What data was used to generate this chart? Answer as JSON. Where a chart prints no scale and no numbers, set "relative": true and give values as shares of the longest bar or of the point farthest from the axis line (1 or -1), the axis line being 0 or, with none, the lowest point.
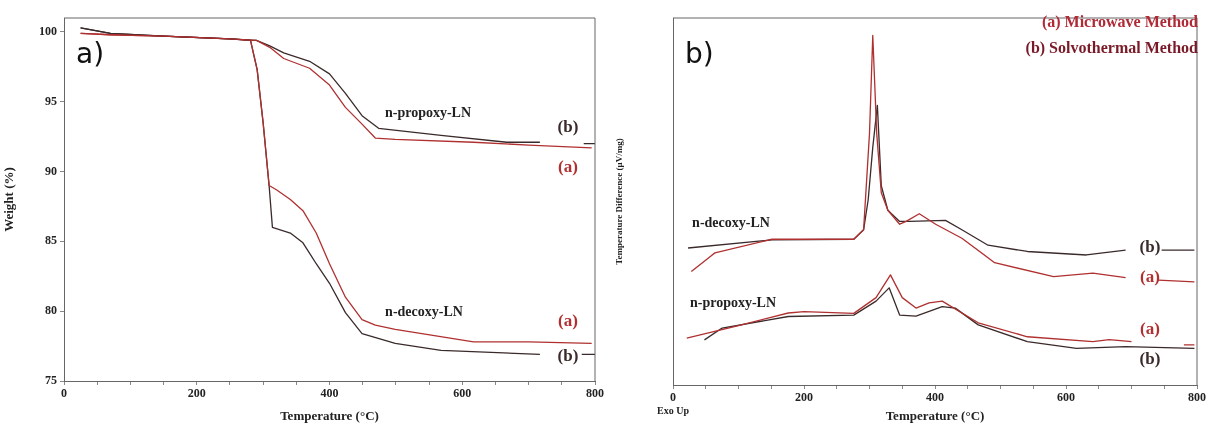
{
  "chart_data": [
    {
      "type": "line",
      "title": "a)",
      "xlabel": "Temperature (°C)",
      "ylabel": "Weight (%)",
      "xlim": [
        0,
        800
      ],
      "ylim": [
        75,
        101
      ],
      "xticks": [
        0,
        {
          "value": 50,
          "label": null
        },
        {
          "value": 100,
          "label": null
        },
        {
          "value": 150,
          "label": null
        },
        200,
        {
          "value": 250,
          "label": null
        },
        {
          "value": 300,
          "label": null
        },
        {
          "value": 350,
          "label": null
        },
        400,
        {
          "value": 450,
          "label": null
        },
        {
          "value": 500,
          "label": null
        },
        {
          "value": 550,
          "label": null
        },
        600,
        {
          "value": 650,
          "label": null
        },
        {
          "value": 700,
          "label": null
        },
        {
          "value": 750,
          "label": null
        },
        800
      ],
      "yticks": [
        75,
        80,
        85,
        90,
        95,
        100
      ],
      "grid": false,
      "legend": false,
      "marker": "none",
      "line_style": "solid",
      "series": [
        {
          "name": "(a)",
          "color": "#b03030",
          "x": [
            25,
            70,
            150,
            250,
            290,
            310,
            331,
            370,
            400,
            424,
            449,
            469,
            499,
            617,
            700,
            795
          ],
          "values": [
            99.9,
            99.8,
            99.7,
            99.5,
            99.4,
            98.9,
            98.1,
            97.4,
            96.2,
            94.6,
            93.4,
            92.4,
            92.3,
            92.1,
            91.9,
            91.7
          ]
        },
        {
          "name": "(b)",
          "color": "#3b2a2a",
          "x": [
            25,
            70,
            150,
            250,
            290,
            310,
            331,
            370,
            400,
            424,
            449,
            474,
            568,
            667,
            717,
            730,
            783,
            800
          ],
          "values": [
            100.3,
            99.9,
            99.7,
            99.5,
            99.4,
            99.0,
            98.5,
            97.9,
            97.0,
            95.6,
            94.0,
            93.1,
            92.6,
            92.1,
            92.1,
            null,
            92.0,
            92.0
          ]
        },
        {
          "name": "(a)",
          "color": "#b03030",
          "x": [
            25,
            70,
            150,
            250,
            281,
            291,
            300,
            309,
            320,
            341,
            360,
            380,
            400,
            424,
            449,
            469,
            499,
            617,
            700,
            795
          ],
          "values": [
            99.9,
            99.8,
            99.7,
            99.5,
            99.4,
            97.3,
            93.5,
            89.0,
            88.7,
            88.0,
            87.2,
            85.6,
            83.4,
            81.0,
            79.4,
            79.0,
            78.7,
            77.8,
            77.8,
            77.7
          ]
        },
        {
          "name": "(b)",
          "color": "#3b2a2a",
          "x": [
            25,
            70,
            150,
            250,
            281,
            291,
            300,
            309,
            314,
            341,
            360,
            380,
            400,
            424,
            449,
            499,
            568,
            717,
            730,
            780,
            800
          ],
          "values": [
            100.3,
            99.9,
            99.7,
            99.5,
            99.4,
            97.3,
            93.5,
            89.0,
            86.0,
            85.6,
            84.9,
            83.4,
            82.0,
            79.9,
            78.4,
            77.7,
            77.2,
            76.9,
            null,
            76.9,
            76.9
          ]
        }
      ],
      "annotations": [
        "n-propoxy-LN",
        "n-decoxy-LN"
      ]
    },
    {
      "type": "line",
      "title": "b)",
      "xlabel": "Temperature (°C)",
      "ylabel": "Temperature Difference (µV/mg)",
      "relative": true,
      "xlim": [
        0,
        800
      ],
      "xticks": [
        0,
        {
          "value": 50,
          "label": null
        },
        {
          "value": 100,
          "label": null
        },
        {
          "value": 150,
          "label": null
        },
        200,
        {
          "value": 250,
          "label": null
        },
        {
          "value": 300,
          "label": null
        },
        {
          "value": 350,
          "label": null
        },
        400,
        {
          "value": 450,
          "label": null
        },
        {
          "value": 500,
          "label": null
        },
        {
          "value": 550,
          "label": null
        },
        600,
        {
          "value": 650,
          "label": null
        },
        {
          "value": 700,
          "label": null
        },
        {
          "value": 750,
          "label": null
        },
        800
      ],
      "grid": false,
      "legend": false,
      "marker": "none",
      "line_style": "solid",
      "series": [
        {
          "name": "(a)",
          "color": "#b03030",
          "x": [
            28,
            64,
            151,
            276,
            291,
            300,
            305,
            311,
            318,
            328,
            346,
            356,
            376,
            401,
            441,
            491,
            581,
            641,
            691,
            710,
            741,
            796
          ],
          "values": [
            0.325,
            0.378,
            0.417,
            0.417,
            0.444,
            0.72,
            1.0,
            0.72,
            0.55,
            0.5,
            0.46,
            0.468,
            0.49,
            0.46,
            0.42,
            0.35,
            0.31,
            0.32,
            0.307,
            null,
            0.3,
            0.295
          ]
        },
        {
          "name": "(b)",
          "color": "#3b2a2a",
          "x": [
            23,
            151,
            276,
            291,
            298,
            305,
            312,
            318,
            328,
            346,
            361,
            416,
            441,
            481,
            541,
            631,
            691,
            710,
            746,
            796
          ],
          "values": [
            0.392,
            0.415,
            0.417,
            0.444,
            0.53,
            0.68,
            0.8,
            0.57,
            0.5,
            0.468,
            0.468,
            0.471,
            0.444,
            0.4,
            0.382,
            0.372,
            0.386,
            null,
            0.386,
            0.386
          ]
        },
        {
          "name": "(a)",
          "color": "#b03030",
          "x": [
            21,
            100,
            176,
            200,
            276,
            310,
            332,
            350,
            371,
            391,
            411,
            466,
            541,
            641,
            666,
            700,
            720,
            780,
            796
          ],
          "values": [
            0.134,
            0.17,
            0.206,
            0.21,
            0.205,
            0.25,
            0.315,
            0.25,
            0.22,
            0.235,
            0.24,
            0.178,
            0.138,
            0.124,
            0.13,
            0.124,
            null,
            0.115,
            0.115
          ]
        },
        {
          "name": "(b)",
          "color": "#3b2a2a",
          "x": [
            48,
            75,
            176,
            276,
            310,
            330,
            346,
            371,
            411,
            431,
            466,
            541,
            616,
            691,
            796
          ],
          "values": [
            0.129,
            0.163,
            0.196,
            0.2,
            0.24,
            0.278,
            0.2,
            0.197,
            0.224,
            0.22,
            0.172,
            0.124,
            0.105,
            0.11,
            0.105
          ]
        }
      ],
      "annotations": [
        "(a) Microwave Method",
        "(b) Solvothermal Method",
        "Exo Up",
        "n-decoxy-LN",
        "n-propoxy-LN"
      ]
    }
  ]
}
